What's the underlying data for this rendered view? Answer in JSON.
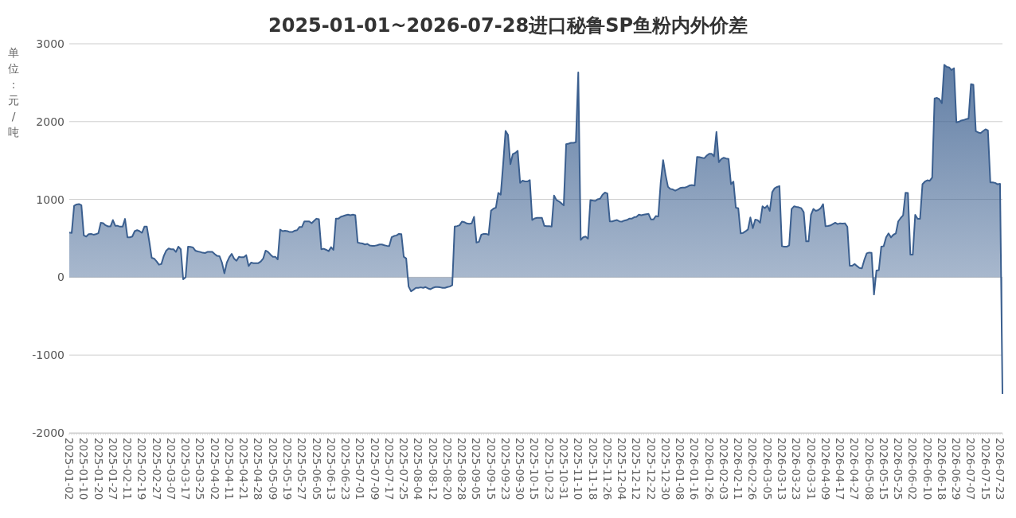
{
  "chart_data": {
    "type": "area",
    "title": "2025-01-01~2026-07-28进口秘鲁SP鱼粉内外价差",
    "ylabel": "单位：元/吨",
    "ylim": [
      -2000,
      3000
    ],
    "yticks": [
      -2000,
      -1000,
      0,
      1000,
      2000,
      3000
    ],
    "grid": "y",
    "categories": [
      "2025-01-02",
      null,
      null,
      null,
      null,
      null,
      "2025-01-10",
      null,
      null,
      null,
      null,
      null,
      "2025-01-20",
      null,
      null,
      null,
      null,
      null,
      "2025-01-27",
      null,
      null,
      null,
      null,
      null,
      "2025-02-11",
      null,
      null,
      null,
      null,
      null,
      "2025-02-19",
      null,
      null,
      null,
      null,
      null,
      "2025-02-27",
      null,
      null,
      null,
      null,
      null,
      "2025-03-07",
      null,
      null,
      null,
      null,
      null,
      "2025-03-17",
      null,
      null,
      null,
      null,
      null,
      "2025-03-25",
      null,
      null,
      null,
      null,
      null,
      "2025-04-02",
      null,
      null,
      null,
      null,
      null,
      "2025-04-11",
      null,
      null,
      null,
      null,
      null,
      "2025-04-21",
      null,
      null,
      null,
      null,
      null,
      "2025-04-28",
      null,
      null,
      null,
      null,
      null,
      "2025-05-09",
      null,
      null,
      null,
      null,
      null,
      "2025-05-19",
      null,
      null,
      null,
      null,
      null,
      "2025-05-27",
      null,
      null,
      null,
      null,
      null,
      "2025-06-05",
      null,
      null,
      null,
      null,
      null,
      "2025-06-13",
      null,
      null,
      null,
      null,
      null,
      "2025-06-23",
      null,
      null,
      null,
      null,
      null,
      "2025-07-01",
      null,
      null,
      null,
      null,
      null,
      "2025-07-09",
      null,
      null,
      null,
      null,
      null,
      "2025-07-17",
      null,
      null,
      null,
      null,
      null,
      "2025-07-25",
      null,
      null,
      null,
      null,
      null,
      "2025-08-04",
      null,
      null,
      null,
      null,
      null,
      "2025-08-12",
      null,
      null,
      null,
      null,
      null,
      "2025-08-20",
      null,
      null,
      null,
      null,
      null,
      "2025-08-28",
      null,
      null,
      null,
      null,
      null,
      "2025-09-05",
      null,
      null,
      null,
      null,
      null,
      "2025-09-15",
      null,
      null,
      null,
      null,
      null,
      "2025-09-23",
      null,
      null,
      null,
      null,
      null,
      "2025-09-30",
      null,
      null,
      null,
      null,
      null,
      "2025-10-15",
      null,
      null,
      null,
      null,
      null,
      "2025-10-23",
      null,
      null,
      null,
      null,
      null,
      "2025-10-31",
      null,
      null,
      null,
      null,
      null,
      "2025-11-10",
      null,
      null,
      null,
      null,
      null,
      "2025-11-18",
      null,
      null,
      null,
      null,
      null,
      "2025-11-26",
      null,
      null,
      null,
      null,
      null,
      "2025-12-04",
      null,
      null,
      null,
      null,
      null,
      "2025-12-12",
      null,
      null,
      null,
      null,
      null,
      "2025-12-22",
      null,
      null,
      null,
      null,
      null,
      "2025-12-30",
      null,
      null,
      null,
      null,
      null,
      "2026-01-08",
      null,
      null,
      null,
      null,
      null,
      "2026-01-16",
      null,
      null,
      null,
      null,
      null,
      "2026-01-26",
      null,
      null,
      null,
      null,
      null,
      "2026-02-03",
      null,
      null,
      null,
      null,
      null,
      "2026-02-11",
      null,
      null,
      null,
      null,
      null,
      "2026-02-26",
      null,
      null,
      null,
      null,
      null,
      "2026-03-05",
      null,
      null,
      null,
      null,
      null,
      "2026-03-13",
      null,
      null,
      null,
      null,
      null,
      "2026-03-23",
      null,
      null,
      null,
      null,
      null,
      "2026-03-31",
      null,
      null,
      null,
      null,
      null,
      "2026-04-09",
      null,
      null,
      null,
      null,
      null,
      "2026-04-17",
      null,
      null,
      null,
      null,
      null,
      "2026-04-27",
      null,
      null,
      null,
      null,
      null,
      "2026-05-08",
      null,
      null,
      null,
      null,
      null,
      "2026-05-15",
      null,
      null,
      null,
      null,
      null,
      "2026-05-25",
      null,
      null,
      null,
      null,
      null,
      "2026-06-02",
      null,
      null,
      null,
      null,
      null,
      "2026-06-10",
      null,
      null,
      null,
      null,
      null,
      "2026-06-18",
      null,
      null,
      null,
      null,
      null,
      "2026-06-29",
      null,
      null,
      null,
      null,
      null,
      "2026-07-07",
      null,
      null,
      null,
      null,
      null,
      "2026-07-15",
      null,
      null,
      null,
      null,
      null,
      "2026-07-23",
      null
    ],
    "series": [
      {
        "color": "#3b5f8f",
        "values": [
          575,
          570,
          917,
          935,
          940,
          925,
          537,
          523,
          554,
          557,
          547,
          554,
          565,
          700,
          694,
          667,
          653,
          653,
          735,
          660,
          660,
          650,
          650,
          749,
          513,
          513,
          523,
          592,
          605,
          592,
          571,
          650,
          650,
          462,
          250,
          240,
          205,
          161,
          171,
          274,
          342,
          369,
          359,
          359,
          325,
          393,
          359,
          -27,
          0,
          393,
          390,
          383,
          342,
          332,
          325,
          315,
          311,
          325,
          325,
          325,
          298,
          274,
          270,
          188,
          51,
          188,
          256,
          301,
          240,
          212,
          263,
          256,
          256,
          284,
          144,
          188,
          181,
          181,
          181,
          202,
          240,
          342,
          325,
          291,
          263,
          263,
          229,
          612,
          592,
          598,
          592,
          581,
          581,
          598,
          605,
          646,
          646,
          718,
          718,
          718,
          694,
          725,
          752,
          745,
          359,
          366,
          352,
          335,
          386,
          352,
          752,
          752,
          776,
          786,
          797,
          804,
          797,
          804,
          797,
          445,
          438,
          434,
          421,
          428,
          407,
          404,
          404,
          410,
          421,
          421,
          410,
          404,
          400,
          513,
          530,
          537,
          557,
          554,
          263,
          240,
          -120,
          -181,
          -161,
          -137,
          -137,
          -130,
          -137,
          -127,
          -144,
          -154,
          -137,
          -127,
          -127,
          -130,
          -137,
          -137,
          -127,
          -120,
          -103,
          650,
          657,
          667,
          715,
          708,
          691,
          687,
          691,
          776,
          445,
          455,
          547,
          557,
          557,
          544,
          855,
          882,
          893,
          1084,
          1060,
          1453,
          1881,
          1830,
          1453,
          1583,
          1597,
          1624,
          1214,
          1241,
          1231,
          1231,
          1248,
          735,
          756,
          763,
          763,
          763,
          660,
          657,
          657,
          650,
          1050,
          992,
          975,
          951,
          923,
          1710,
          1717,
          1727,
          1727,
          1734,
          2633,
          479,
          513,
          523,
          496,
          992,
          985,
          981,
          1002,
          1009,
          1060,
          1088,
          1077,
          718,
          718,
          728,
          735,
          718,
          715,
          728,
          735,
          752,
          752,
          770,
          776,
          804,
          797,
          804,
          810,
          814,
          742,
          742,
          786,
          780,
          1214,
          1505,
          1317,
          1163,
          1135,
          1128,
          1111,
          1128,
          1146,
          1152,
          1152,
          1163,
          1180,
          1184,
          1177,
          1546,
          1543,
          1536,
          1529,
          1563,
          1587,
          1587,
          1553,
          1867,
          1478,
          1519,
          1536,
          1526,
          1519,
          1195,
          1229,
          894,
          887,
          563,
          570,
          590,
          614,
          768,
          631,
          741,
          734,
          700,
          911,
          887,
          921,
          853,
          1092,
          1143,
          1160,
          1171,
          399,
          392,
          392,
          410,
          877,
          911,
          904,
          898,
          887,
          836,
          461,
          461,
          802,
          877,
          853,
          863,
          887,
          939,
          655,
          659,
          666,
          683,
          700,
          683,
          693,
          689,
          693,
          648,
          147,
          147,
          171,
          143,
          119,
          113,
          222,
          307,
          317,
          314,
          -222,
          85,
          92,
          392,
          399,
          512,
          563,
          512,
          546,
          563,
          717,
          761,
          795,
          1085,
          1082,
          290,
          290,
          802,
          751,
          751,
          1195,
          1229,
          1246,
          1239,
          1280,
          2297,
          2304,
          2287,
          2236,
          2730,
          2703,
          2696,
          2662,
          2686,
          1990,
          1997,
          2014,
          2020,
          2031,
          2038,
          2481,
          2474,
          1877,
          1860,
          1853,
          1877,
          1901,
          1887,
          1218,
          1218,
          1212,
          1195,
          1200,
          -1500
        ]
      }
    ]
  }
}
